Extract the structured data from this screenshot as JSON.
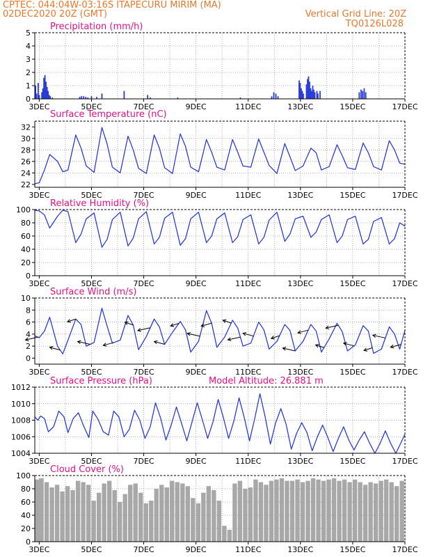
{
  "header": {
    "line1": "CPTEC:   044:04W-03:16S   ITAPECURU MIRIM (MA)",
    "line2": "02DEC2020 20Z (GMT)",
    "grid_note": "Vertical Grid Line: 20Z",
    "code": "TQ0126L028"
  },
  "colors": {
    "header": "#e8782a",
    "title": "#e0108a",
    "series": "#2a3cd8",
    "cloud": "#a8a8a8",
    "grid": "#999999"
  },
  "chart_data": [
    {
      "type": "bar",
      "title": "Precipitation (mm/h)",
      "x_tick_labels": [
        "3DEC",
        "5DEC",
        "7DEC",
        "9DEC",
        "11DEC",
        "13DEC",
        "15DEC",
        "17DEC"
      ],
      "ylim": [
        0,
        5
      ],
      "y_ticks": [
        0,
        1,
        2,
        3,
        4,
        5
      ],
      "grid": true,
      "x_range_days": [
        2.83,
        17.0
      ],
      "bars": [
        {
          "x": 2.86,
          "value": 1.0
        },
        {
          "x": 2.9,
          "value": 0.4
        },
        {
          "x": 2.96,
          "value": 1.2
        },
        {
          "x": 3.0,
          "value": 0.3
        },
        {
          "x": 3.1,
          "value": 0.5
        },
        {
          "x": 3.14,
          "value": 0.8
        },
        {
          "x": 3.18,
          "value": 1.6
        },
        {
          "x": 3.22,
          "value": 1.8
        },
        {
          "x": 3.26,
          "value": 1.3
        },
        {
          "x": 3.3,
          "value": 0.9
        },
        {
          "x": 3.34,
          "value": 0.6
        },
        {
          "x": 3.38,
          "value": 0.3
        },
        {
          "x": 3.42,
          "value": 0.2
        },
        {
          "x": 3.5,
          "value": 0.1
        },
        {
          "x": 4.55,
          "value": 0.15
        },
        {
          "x": 4.62,
          "value": 0.2
        },
        {
          "x": 4.7,
          "value": 0.2
        },
        {
          "x": 4.78,
          "value": 0.15
        },
        {
          "x": 4.86,
          "value": 0.1
        },
        {
          "x": 5.0,
          "value": 0.2
        },
        {
          "x": 5.2,
          "value": 0.15
        },
        {
          "x": 5.4,
          "value": 0.4
        },
        {
          "x": 6.25,
          "value": 0.6
        },
        {
          "x": 7.15,
          "value": 0.3
        },
        {
          "x": 7.25,
          "value": 0.1
        },
        {
          "x": 8.3,
          "value": 0.1
        },
        {
          "x": 10.7,
          "value": 0.1
        },
        {
          "x": 11.9,
          "value": 0.2
        },
        {
          "x": 11.98,
          "value": 0.5
        },
        {
          "x": 12.06,
          "value": 0.4
        },
        {
          "x": 12.14,
          "value": 0.2
        },
        {
          "x": 12.95,
          "value": 1.4
        },
        {
          "x": 12.99,
          "value": 1.2
        },
        {
          "x": 13.03,
          "value": 0.8
        },
        {
          "x": 13.07,
          "value": 0.6
        },
        {
          "x": 13.11,
          "value": 0.4
        },
        {
          "x": 13.23,
          "value": 1.1
        },
        {
          "x": 13.27,
          "value": 1.5
        },
        {
          "x": 13.31,
          "value": 1.7
        },
        {
          "x": 13.35,
          "value": 1.3
        },
        {
          "x": 13.39,
          "value": 0.8
        },
        {
          "x": 13.43,
          "value": 0.6
        },
        {
          "x": 13.47,
          "value": 1.0
        },
        {
          "x": 13.51,
          "value": 0.7
        },
        {
          "x": 13.55,
          "value": 0.5
        },
        {
          "x": 13.63,
          "value": 0.6
        },
        {
          "x": 13.67,
          "value": 0.4
        },
        {
          "x": 13.75,
          "value": 0.6
        },
        {
          "x": 15.25,
          "value": 0.5
        },
        {
          "x": 15.32,
          "value": 0.7
        },
        {
          "x": 15.38,
          "value": 0.6
        },
        {
          "x": 15.44,
          "value": 0.8
        },
        {
          "x": 15.5,
          "value": 0.5
        }
      ]
    },
    {
      "type": "line",
      "title": "Surface Temperature (nC)",
      "x_tick_labels": [
        "3DEC",
        "5DEC",
        "7DEC",
        "9DEC",
        "11DEC",
        "13DEC",
        "15DEC",
        "17DEC"
      ],
      "ylim": [
        21.5,
        33.0
      ],
      "y_ticks": [
        22,
        24,
        26,
        28,
        30,
        32
      ],
      "grid": true,
      "x_range_days": [
        2.83,
        17.0
      ],
      "x": [
        2.83,
        3.0,
        3.2,
        3.4,
        3.7,
        3.9,
        4.1,
        4.4,
        4.6,
        4.8,
        5.1,
        5.4,
        5.6,
        5.8,
        6.1,
        6.4,
        6.6,
        6.8,
        7.1,
        7.4,
        7.6,
        7.8,
        8.1,
        8.4,
        8.6,
        8.8,
        9.1,
        9.4,
        9.6,
        9.8,
        10.1,
        10.4,
        10.6,
        10.8,
        11.1,
        11.4,
        11.6,
        11.8,
        12.1,
        12.4,
        12.6,
        12.8,
        13.1,
        13.4,
        13.6,
        13.8,
        14.1,
        14.4,
        14.6,
        14.8,
        15.1,
        15.4,
        15.6,
        15.8,
        16.1,
        16.4,
        16.6,
        16.8,
        17.0
      ],
      "y": [
        22.1,
        22.3,
        24.5,
        27.2,
        26.0,
        24.2,
        24.5,
        30.6,
        28.3,
        25.2,
        24.1,
        31.9,
        29.0,
        25.0,
        24.0,
        30.4,
        28.0,
        24.8,
        23.9,
        30.6,
        28.3,
        24.9,
        23.9,
        30.8,
        28.6,
        25.0,
        24.2,
        29.8,
        27.6,
        25.0,
        24.5,
        29.8,
        27.6,
        25.2,
        25.0,
        29.9,
        27.6,
        25.3,
        23.9,
        29.1,
        26.8,
        24.4,
        25.2,
        28.3,
        27.5,
        24.5,
        25.1,
        28.9,
        27.0,
        24.9,
        24.6,
        29.2,
        27.5,
        25.1,
        24.5,
        29.6,
        28.0,
        25.7,
        25.5
      ]
    },
    {
      "type": "line",
      "title": "Relative Humidity (%)",
      "x_tick_labels": [
        "3DEC",
        "5DEC",
        "7DEC",
        "9DEC",
        "11DEC",
        "13DEC",
        "15DEC",
        "17DEC"
      ],
      "ylim": [
        0,
        100
      ],
      "y_ticks": [
        0,
        20,
        40,
        60,
        80,
        100
      ],
      "grid": true,
      "x_range_days": [
        2.83,
        17.0
      ],
      "x": [
        2.83,
        3.0,
        3.2,
        3.4,
        3.7,
        3.9,
        4.1,
        4.4,
        4.6,
        4.8,
        5.1,
        5.4,
        5.6,
        5.8,
        6.1,
        6.4,
        6.6,
        6.8,
        7.1,
        7.4,
        7.6,
        7.8,
        8.1,
        8.4,
        8.6,
        8.8,
        9.1,
        9.4,
        9.6,
        9.8,
        10.1,
        10.4,
        10.6,
        10.8,
        11.1,
        11.4,
        11.6,
        11.8,
        12.1,
        12.4,
        12.6,
        12.8,
        13.1,
        13.4,
        13.6,
        13.8,
        14.1,
        14.4,
        14.6,
        14.8,
        15.1,
        15.4,
        15.6,
        15.8,
        16.1,
        16.4,
        16.6,
        16.8,
        17.0
      ],
      "y": [
        99,
        98,
        92,
        72,
        90,
        99,
        97,
        50,
        63,
        86,
        95,
        43,
        55,
        85,
        96,
        45,
        57,
        86,
        97,
        48,
        58,
        87,
        96,
        46,
        56,
        86,
        96,
        50,
        60,
        86,
        95,
        50,
        59,
        85,
        92,
        48,
        58,
        84,
        96,
        52,
        63,
        86,
        90,
        58,
        66,
        85,
        92,
        50,
        60,
        85,
        90,
        48,
        55,
        82,
        88,
        48,
        56,
        80,
        75
      ]
    },
    {
      "type": "line",
      "title": "Surface Wind (m/s)",
      "x_tick_labels": [
        "3DEC",
        "5DEC",
        "7DEC",
        "9DEC",
        "11DEC",
        "13DEC",
        "15DEC",
        "17DEC"
      ],
      "ylim": [
        -1,
        10
      ],
      "y_ticks": [
        0,
        2,
        4,
        6,
        8,
        10
      ],
      "grid": true,
      "x_range_days": [
        2.83,
        17.0
      ],
      "x": [
        2.83,
        3.0,
        3.2,
        3.4,
        3.7,
        3.9,
        4.1,
        4.4,
        4.6,
        4.8,
        5.1,
        5.4,
        5.6,
        5.8,
        6.1,
        6.4,
        6.6,
        6.8,
        7.1,
        7.4,
        7.6,
        7.8,
        8.1,
        8.4,
        8.6,
        8.8,
        9.1,
        9.4,
        9.6,
        9.8,
        10.1,
        10.4,
        10.6,
        10.8,
        11.1,
        11.4,
        11.6,
        11.8,
        12.1,
        12.4,
        12.6,
        12.8,
        13.1,
        13.4,
        13.6,
        13.8,
        14.1,
        14.4,
        14.6,
        14.8,
        15.1,
        15.4,
        15.6,
        15.8,
        16.1,
        16.4,
        16.6,
        16.8,
        17.0
      ],
      "y": [
        3.7,
        3.4,
        4.5,
        6.8,
        2.0,
        0.7,
        3.0,
        6.5,
        5.6,
        2.0,
        2.6,
        8.3,
        5.3,
        2.5,
        3.0,
        7.1,
        5.5,
        1.4,
        3.6,
        6.5,
        5.2,
        2.3,
        4.3,
        6.1,
        4.7,
        1.0,
        2.8,
        7.9,
        5.8,
        1.8,
        3.5,
        6.3,
        5.0,
        2.0,
        2.5,
        6.0,
        4.7,
        1.5,
        2.8,
        5.6,
        4.6,
        1.2,
        2.8,
        5.6,
        4.5,
        1.0,
        3.2,
        5.8,
        4.4,
        1.2,
        2.2,
        5.4,
        4.5,
        0.8,
        1.5,
        5.2,
        4.0,
        1.5,
        4.6
      ],
      "arrow_x": [
        2.95,
        3.8,
        4.4,
        4.95,
        5.85,
        6.6,
        7.25,
        7.8,
        8.35,
        9.15,
        9.6,
        10.35,
        10.7,
        11.2,
        12.2,
        12.8,
        13.3,
        13.9,
        14.45,
        15.05,
        15.75,
        16.25,
        16.85
      ]
    },
    {
      "type": "line",
      "title": "Surface Pressure (hPa)",
      "annotation": "Model Altitude: 26.881 m",
      "x_tick_labels": [
        "3DEC",
        "5DEC",
        "7DEC",
        "9DEC",
        "11DEC",
        "13DEC",
        "15DEC",
        "17DEC"
      ],
      "ylim": [
        1004,
        1012
      ],
      "y_ticks": [
        1004,
        1006,
        1008,
        1010,
        1012
      ],
      "grid": true,
      "x_range_days": [
        2.83,
        17.0
      ],
      "x": [
        2.83,
        2.95,
        3.05,
        3.2,
        3.35,
        3.55,
        3.75,
        3.95,
        4.1,
        4.3,
        4.5,
        4.7,
        4.9,
        5.05,
        5.25,
        5.45,
        5.65,
        5.85,
        6.05,
        6.25,
        6.45,
        6.65,
        6.85,
        7.05,
        7.25,
        7.45,
        7.65,
        7.85,
        8.05,
        8.25,
        8.45,
        8.65,
        8.85,
        9.05,
        9.25,
        9.45,
        9.65,
        9.85,
        10.05,
        10.25,
        10.45,
        10.65,
        10.85,
        11.05,
        11.25,
        11.45,
        11.65,
        11.85,
        12.05,
        12.25,
        12.45,
        12.65,
        12.85,
        13.05,
        13.25,
        13.45,
        13.65,
        13.85,
        14.05,
        14.25,
        14.45,
        14.65,
        14.85,
        15.05,
        15.25,
        15.45,
        15.65,
        15.85,
        16.05,
        16.25,
        16.45,
        16.65,
        16.85,
        17.0
      ],
      "y": [
        1008.4,
        1008.0,
        1008.5,
        1008.2,
        1006.6,
        1007.2,
        1009.1,
        1008.4,
        1006.5,
        1008.2,
        1008.9,
        1007.3,
        1005.9,
        1009.1,
        1008.1,
        1006.6,
        1006.2,
        1009.1,
        1008.4,
        1006.0,
        1006.9,
        1009.2,
        1008.0,
        1005.8,
        1007.2,
        1010.1,
        1008.2,
        1005.6,
        1007.4,
        1009.6,
        1007.6,
        1005.5,
        1007.8,
        1010.1,
        1008.0,
        1005.8,
        1007.8,
        1010.5,
        1008.3,
        1005.8,
        1007.9,
        1010.7,
        1008.3,
        1005.5,
        1008.2,
        1011.2,
        1008.4,
        1005.1,
        1007.7,
        1009.4,
        1007.5,
        1004.5,
        1006.4,
        1007.7,
        1006.5,
        1004.3,
        1006.0,
        1007.4,
        1005.9,
        1004.2,
        1005.8,
        1007.2,
        1005.6,
        1004.4,
        1005.6,
        1006.6,
        1005.2,
        1004.0,
        1005.2,
        1006.7,
        1005.2,
        1004.0,
        1005.3,
        1006.3
      ]
    },
    {
      "type": "bar",
      "title": "Cloud Cover (%)",
      "x_tick_labels": [
        "3DEC",
        "5DEC",
        "7DEC",
        "9DEC",
        "11DEC",
        "13DEC",
        "15DEC",
        "17DEC"
      ],
      "ylim": [
        0,
        100
      ],
      "y_ticks": [
        0,
        20,
        40,
        60,
        80,
        100
      ],
      "grid": true,
      "x_range_days": [
        2.83,
        17.0
      ],
      "x": [
        2.83,
        3.0,
        3.2,
        3.4,
        3.6,
        3.8,
        4.0,
        4.2,
        4.4,
        4.6,
        4.8,
        5.0,
        5.2,
        5.4,
        5.6,
        5.8,
        6.0,
        6.2,
        6.4,
        6.6,
        6.8,
        7.0,
        7.2,
        7.4,
        7.6,
        7.8,
        8.0,
        8.2,
        8.4,
        8.6,
        8.8,
        9.0,
        9.2,
        9.4,
        9.6,
        9.8,
        10.0,
        10.2,
        10.4,
        10.6,
        10.8,
        11.0,
        11.2,
        11.4,
        11.6,
        11.8,
        12.0,
        12.2,
        12.4,
        12.6,
        12.8,
        13.0,
        13.2,
        13.4,
        13.6,
        13.8,
        14.0,
        14.2,
        14.4,
        14.6,
        14.8,
        15.0,
        15.2,
        15.4,
        15.6,
        15.8,
        16.0,
        16.2,
        16.4,
        16.6,
        16.8,
        17.0
      ],
      "values": [
        94,
        96,
        90,
        82,
        86,
        76,
        84,
        78,
        92,
        90,
        86,
        62,
        74,
        88,
        92,
        78,
        60,
        72,
        86,
        88,
        74,
        58,
        62,
        80,
        86,
        82,
        92,
        90,
        88,
        84,
        66,
        58,
        74,
        84,
        78,
        62,
        24,
        18,
        88,
        92,
        80,
        82,
        94,
        90,
        86,
        92,
        94,
        96,
        92,
        92,
        94,
        90,
        92,
        96,
        94,
        92,
        94,
        96,
        92,
        94,
        90,
        94,
        90,
        86,
        90,
        88,
        92,
        94,
        90,
        84,
        92,
        92
      ]
    }
  ]
}
